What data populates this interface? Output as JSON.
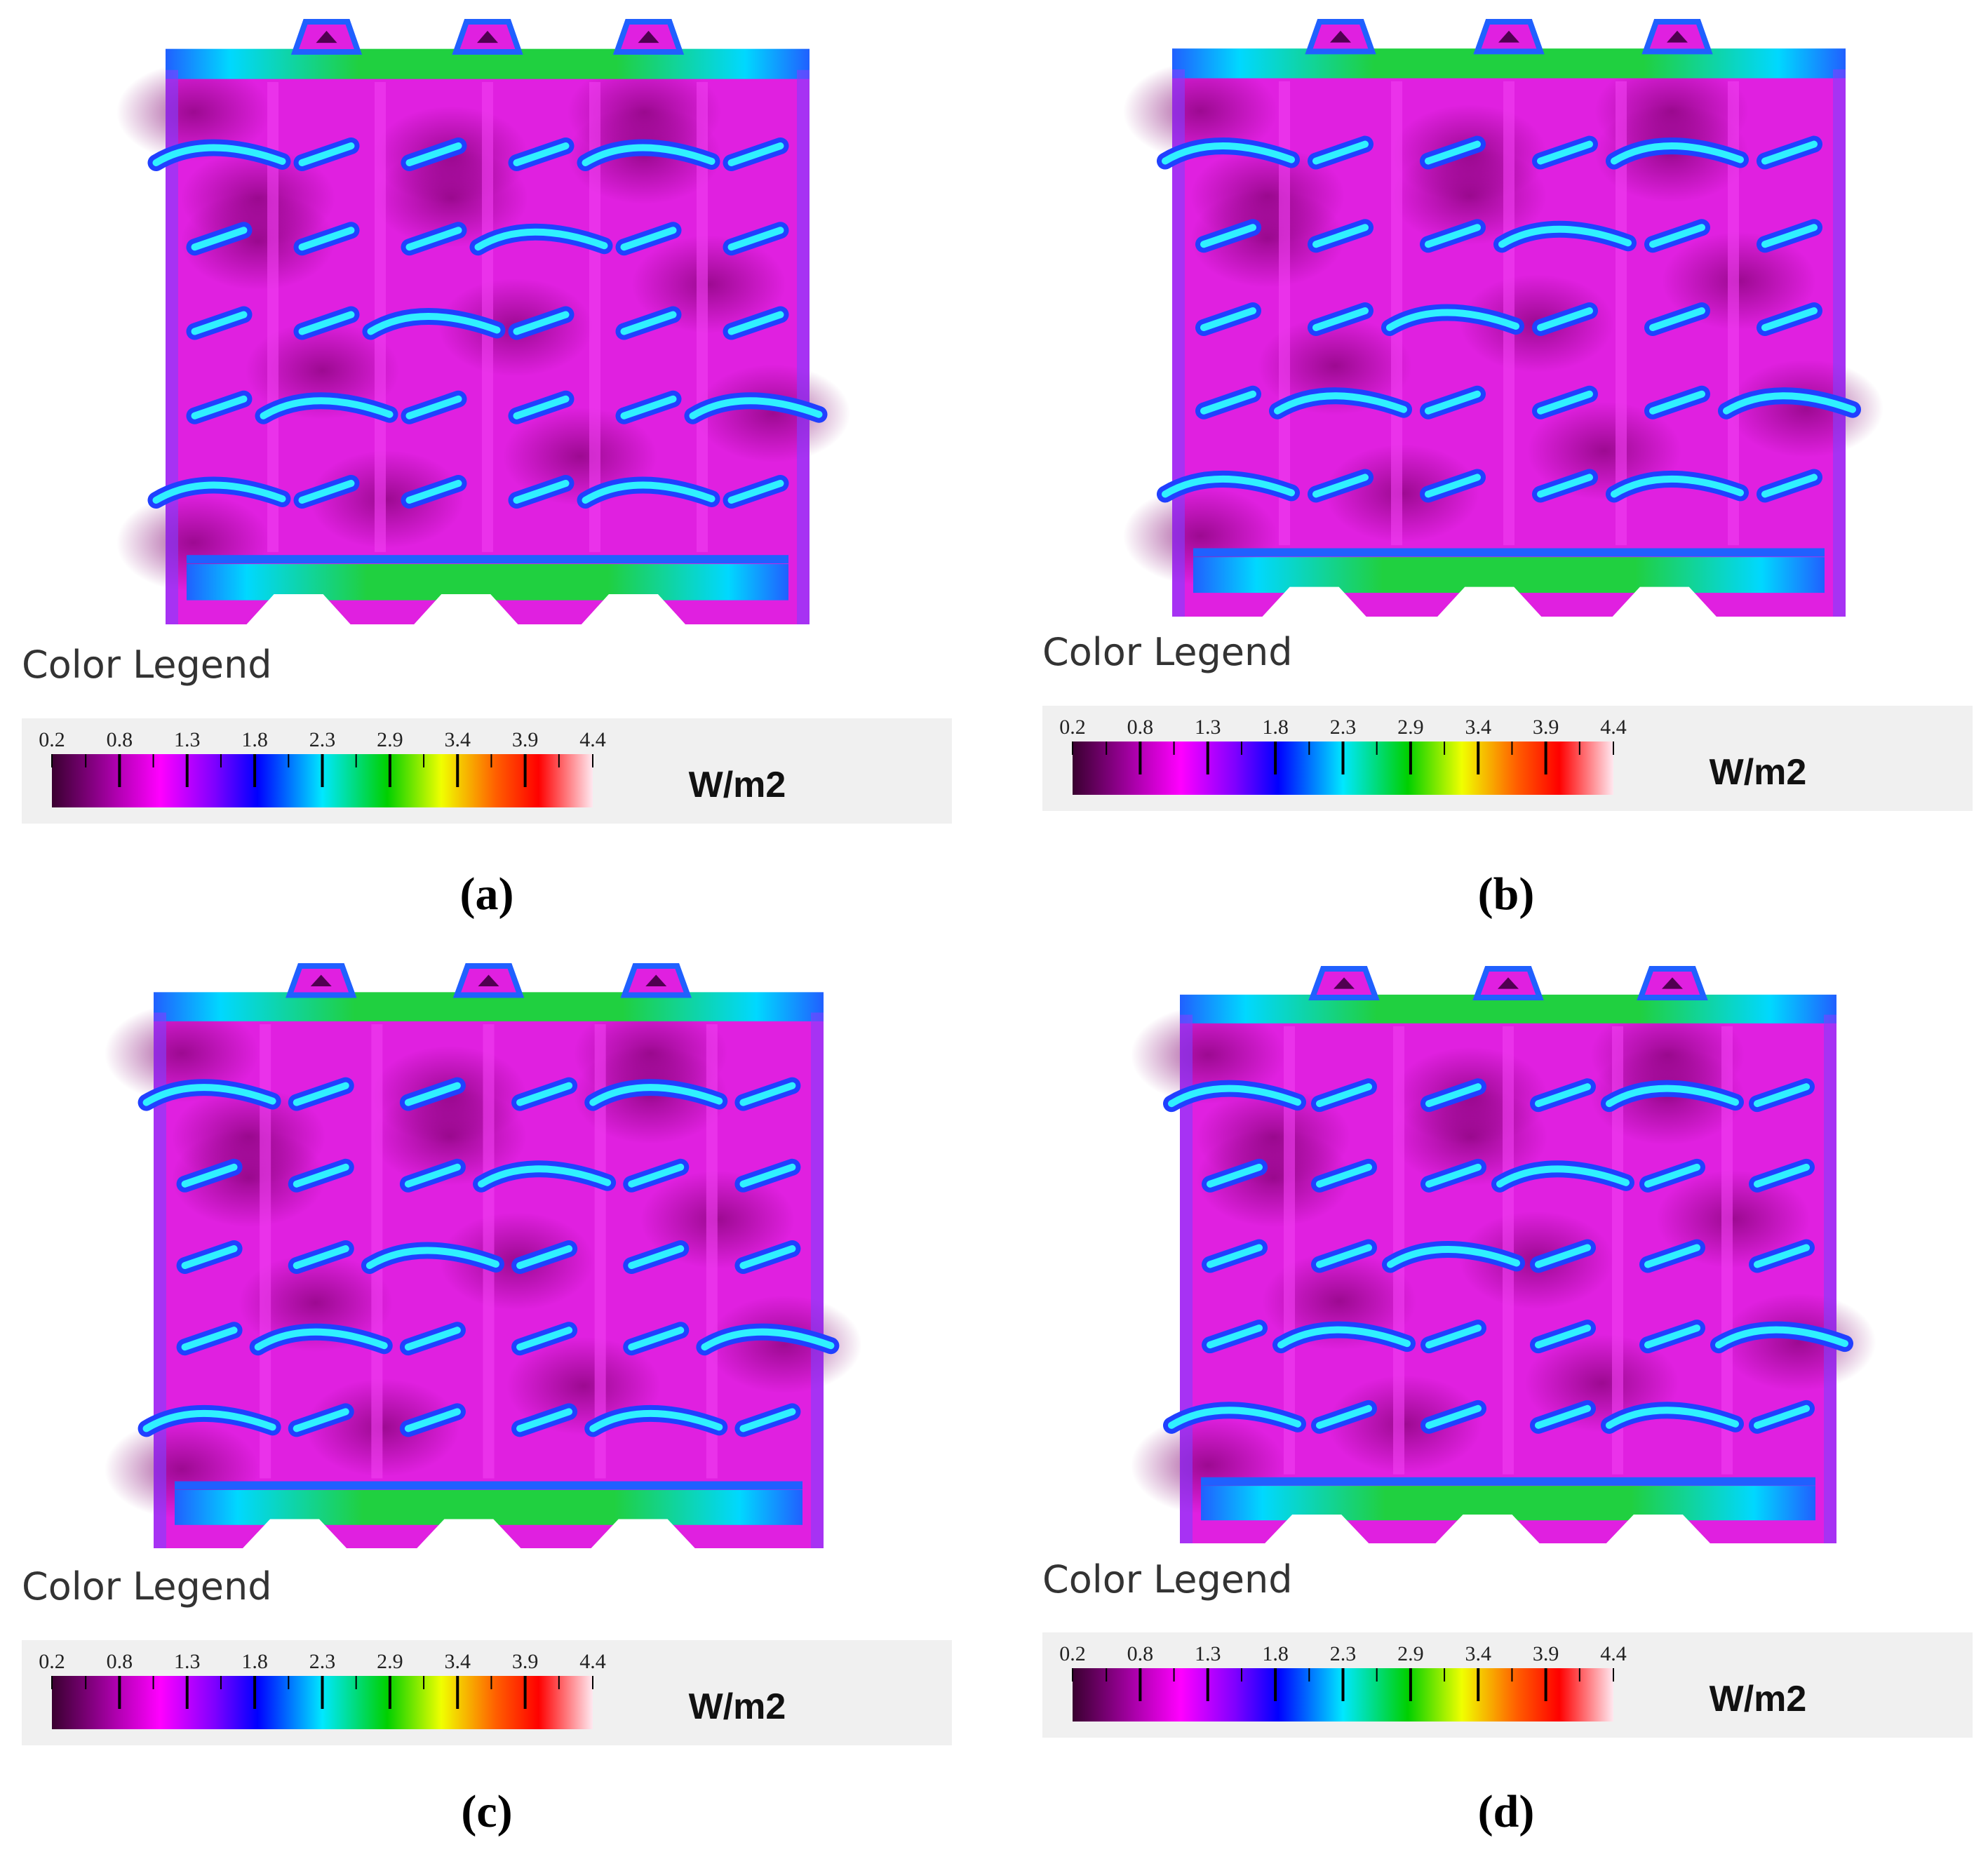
{
  "panels": [
    {
      "legend": {
        "title": "Color Legend",
        "ticks": [
          "0.2",
          "0.8",
          "1.3",
          "1.8",
          "2.3",
          "2.9",
          "3.4",
          "3.9",
          "4.4"
        ],
        "unit": "W/m2"
      },
      "caption": "(a)"
    },
    {
      "legend": {
        "title": "Color Legend",
        "ticks": [
          "0.2",
          "0.8",
          "1.3",
          "1.8",
          "2.3",
          "2.9",
          "3.4",
          "3.9",
          "4.4"
        ],
        "unit": "W/m2"
      },
      "caption": "(b)"
    },
    {
      "legend": {
        "title": "Color Legend",
        "ticks": [
          "0.2",
          "0.8",
          "1.3",
          "1.8",
          "2.3",
          "2.9",
          "3.4",
          "3.9",
          "4.4"
        ],
        "unit": "W/m2"
      },
      "caption": "(c)"
    },
    {
      "legend": {
        "title": "Color Legend",
        "ticks": [
          "0.2",
          "0.8",
          "1.3",
          "1.8",
          "2.3",
          "2.9",
          "3.4",
          "3.9",
          "4.4"
        ],
        "unit": "W/m2"
      },
      "caption": "(d)"
    }
  ]
}
